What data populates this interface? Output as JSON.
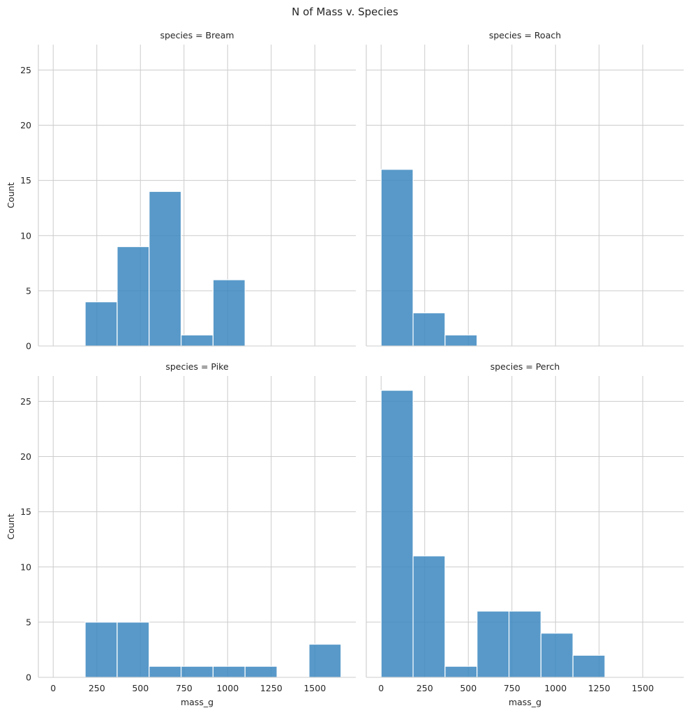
{
  "chart_data": {
    "type": "bar",
    "title": "N of Mass v. Species",
    "xlabel": "mass_g",
    "ylabel": "Count",
    "xlim": [
      -85,
      1735
    ],
    "ylim": [
      0,
      27.3
    ],
    "xticks": [
      0,
      250,
      500,
      750,
      1000,
      1250,
      1500
    ],
    "xtick_labels": [
      "0",
      "250",
      "500",
      "750",
      "1000",
      "1250",
      "1500"
    ],
    "yticks": [
      0,
      5,
      10,
      15,
      20,
      25
    ],
    "ytick_labels": [
      "0",
      "5",
      "10",
      "15",
      "20",
      "25"
    ],
    "bin_width": 183.3,
    "grid": true,
    "facets": [
      {
        "title": "species = Bream",
        "bins": [
          {
            "start": 183.3,
            "count": 4
          },
          {
            "start": 366.7,
            "count": 9
          },
          {
            "start": 550.0,
            "count": 14
          },
          {
            "start": 733.3,
            "count": 1
          },
          {
            "start": 916.7,
            "count": 6
          }
        ]
      },
      {
        "title": "species = Roach",
        "bins": [
          {
            "start": 0,
            "count": 16
          },
          {
            "start": 183.3,
            "count": 3
          },
          {
            "start": 366.7,
            "count": 1
          }
        ]
      },
      {
        "title": "species = Pike",
        "bins": [
          {
            "start": 183.3,
            "count": 5
          },
          {
            "start": 366.7,
            "count": 5
          },
          {
            "start": 550.0,
            "count": 1
          },
          {
            "start": 733.3,
            "count": 1
          },
          {
            "start": 916.7,
            "count": 1
          },
          {
            "start": 1100.0,
            "count": 1
          },
          {
            "start": 1466.7,
            "count": 3
          }
        ]
      },
      {
        "title": "species = Perch",
        "bins": [
          {
            "start": 0,
            "count": 26
          },
          {
            "start": 183.3,
            "count": 11
          },
          {
            "start": 366.7,
            "count": 1
          },
          {
            "start": 550.0,
            "count": 6
          },
          {
            "start": 733.3,
            "count": 6
          },
          {
            "start": 916.7,
            "count": 4
          },
          {
            "start": 1100.0,
            "count": 2
          }
        ]
      }
    ]
  }
}
